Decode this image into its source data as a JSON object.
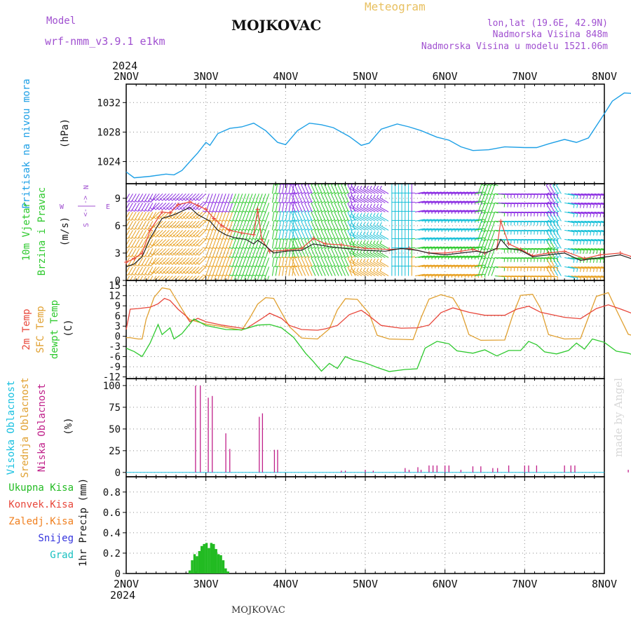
{
  "header": {
    "model_label": "Model",
    "model_name": "wrf-nmm_v3.9.1 e1km",
    "station": "MOJKOVAC",
    "meteogram": "Meteogram",
    "coords": "lon,lat (19.6E, 42.9N)",
    "altitude": "Nadmorska Visina 848m",
    "model_altitude": "Nadmorska Visina u modelu 1521.06m",
    "year_top": "2024",
    "year_bottom": "2024",
    "footer_station": "MOJKOVAC",
    "credit": "made by Angel"
  },
  "days": [
    "2NOV",
    "3NOV",
    "4NOV",
    "5NOV",
    "6NOV",
    "7NOV",
    "8NOV"
  ],
  "colors": {
    "pressure": "#1ea0e6",
    "temp2m": "#e8473b",
    "sfc": "#e0a030",
    "dew": "#2ec92e",
    "cloud_low": "#c0208a",
    "precip": "#22bb22",
    "wind_low": "#e8a020",
    "wind_mid": "#2ec92e",
    "wind_high": "#18c0d8",
    "wind_top": "#8a2be2",
    "wind_speed": "#222222",
    "gust": "#e8473b",
    "violet_text": "#a050d0"
  },
  "panels": {
    "pressure": {
      "label": "Pritisak na nivou mora",
      "unit": "(hPa)",
      "ticks": [
        1024,
        1028,
        1032
      ],
      "ylim": [
        1021,
        1034.5
      ]
    },
    "wind": {
      "label1": "10m Vjetar",
      "label2": "Brzina i Pravac",
      "unit": "(m/s)",
      "compass_n": "N",
      "compass_s": "S",
      "compass_w": "W",
      "compass_e": "E",
      "compass_arrows": "<-|->",
      "ticks": [
        0,
        3,
        6,
        9
      ],
      "ylim": [
        0,
        10.6
      ]
    },
    "temp": {
      "label1": "2m Temp",
      "label2": "SFC Temp",
      "label3": "dewpt Temp",
      "unit": "(C)",
      "ticks": [
        -12,
        -9,
        -6,
        -3,
        0,
        3,
        6,
        9,
        12,
        15
      ],
      "ylim": [
        -12.5,
        16.5
      ]
    },
    "cloud": {
      "label1": "Visoka Oblacnost",
      "label2": "Srednja Oblacnost",
      "label3": "Niska Oblacnost",
      "unit": "(%)",
      "ticks": [
        0,
        25,
        50,
        75,
        100
      ],
      "ylim": [
        -5,
        108
      ]
    },
    "precip": {
      "legend": [
        "Ukupna Kisa",
        "Konvek.Kisa",
        "Zaledj.Kisa",
        "Snijeg",
        "Grad"
      ],
      "legend_colors": [
        "#22bb22",
        "#e8473b",
        "#f08020",
        "#3333dd",
        "#18c0c0"
      ],
      "axis_label": "1hr Precip (mm)",
      "ticks": [
        "0",
        "0.2",
        "0.4",
        "0.6",
        "0.8"
      ],
      "ylim": [
        0,
        0.95
      ]
    }
  },
  "chart_data": {
    "type": "line",
    "x_unit": "days since 2NOV 00 UTC",
    "pressure": [
      [
        0,
        1022.6
      ],
      [
        0.1,
        1021.8
      ],
      [
        0.3,
        1022
      ],
      [
        0.5,
        1022.3
      ],
      [
        0.6,
        1022.2
      ],
      [
        0.7,
        1022.8
      ],
      [
        0.8,
        1024
      ],
      [
        0.9,
        1025.2
      ],
      [
        1.0,
        1026.6
      ],
      [
        1.05,
        1026.2
      ],
      [
        1.15,
        1027.8
      ],
      [
        1.3,
        1028.5
      ],
      [
        1.45,
        1028.7
      ],
      [
        1.6,
        1029.2
      ],
      [
        1.75,
        1028.2
      ],
      [
        1.9,
        1026.6
      ],
      [
        2.0,
        1026.3
      ],
      [
        2.15,
        1028.2
      ],
      [
        2.3,
        1029.2
      ],
      [
        2.45,
        1029
      ],
      [
        2.6,
        1028.6
      ],
      [
        2.8,
        1027.4
      ],
      [
        2.95,
        1026.2
      ],
      [
        3.05,
        1026.5
      ],
      [
        3.2,
        1028.4
      ],
      [
        3.4,
        1029.1
      ],
      [
        3.55,
        1028.7
      ],
      [
        3.7,
        1028.2
      ],
      [
        3.9,
        1027.3
      ],
      [
        4.05,
        1026.9
      ],
      [
        4.2,
        1026
      ],
      [
        4.35,
        1025.5
      ],
      [
        4.55,
        1025.6
      ],
      [
        4.75,
        1026
      ],
      [
        5.0,
        1025.9
      ],
      [
        5.15,
        1025.9
      ],
      [
        5.3,
        1026.4
      ],
      [
        5.5,
        1027
      ],
      [
        5.65,
        1026.6
      ],
      [
        5.8,
        1027.2
      ],
      [
        6.0,
        1030.5
      ],
      [
        6.1,
        1032.2
      ],
      [
        6.25,
        1033.3
      ],
      [
        6.4,
        1033.2
      ],
      [
        6.55,
        1032.3
      ],
      [
        6.75,
        1030.7
      ],
      [
        6.95,
        1031.6
      ],
      [
        7.1,
        1033.0
      ],
      [
        7.25,
        1032.8
      ],
      [
        7.45,
        1034.0
      ],
      [
        7.6,
        1034.2
      ]
    ],
    "temp2m": [
      [
        0,
        2
      ],
      [
        0.05,
        8
      ],
      [
        0.15,
        8.2
      ],
      [
        0.3,
        8.6
      ],
      [
        0.4,
        9.6
      ],
      [
        0.48,
        11.2
      ],
      [
        0.55,
        10.6
      ],
      [
        0.65,
        8
      ],
      [
        0.75,
        6
      ],
      [
        0.8,
        4.3
      ],
      [
        0.9,
        5.3
      ],
      [
        1.0,
        4.3
      ],
      [
        1.2,
        3.3
      ],
      [
        1.5,
        2.2
      ],
      [
        1.7,
        5.2
      ],
      [
        1.8,
        6.8
      ],
      [
        1.95,
        5.3
      ],
      [
        2.05,
        3.2
      ],
      [
        2.2,
        2
      ],
      [
        2.4,
        1.8
      ],
      [
        2.5,
        2.2
      ],
      [
        2.65,
        3.2
      ],
      [
        2.8,
        6.4
      ],
      [
        2.95,
        7.7
      ],
      [
        3.05,
        6
      ],
      [
        3.2,
        3.2
      ],
      [
        3.45,
        2.4
      ],
      [
        3.65,
        2.5
      ],
      [
        3.8,
        3.3
      ],
      [
        3.95,
        7
      ],
      [
        4.1,
        8.4
      ],
      [
        4.3,
        7.1
      ],
      [
        4.5,
        6.2
      ],
      [
        4.75,
        6.2
      ],
      [
        4.9,
        8
      ],
      [
        5.05,
        8.9
      ],
      [
        5.2,
        7.1
      ],
      [
        5.5,
        5.6
      ],
      [
        5.7,
        5.2
      ],
      [
        5.9,
        8.2
      ],
      [
        6.05,
        9.3
      ],
      [
        6.2,
        8.1
      ],
      [
        6.5,
        5.4
      ],
      [
        6.8,
        5.1
      ],
      [
        6.95,
        8.1
      ],
      [
        7.1,
        9.2
      ],
      [
        7.25,
        8.2
      ],
      [
        7.45,
        5.1
      ],
      [
        7.6,
        4.7
      ]
    ],
    "sfc": [
      [
        0,
        -0.4
      ],
      [
        0.05,
        -0.4
      ],
      [
        0.15,
        -0.8
      ],
      [
        0.2,
        -0.8
      ],
      [
        0.25,
        5
      ],
      [
        0.35,
        11.5
      ],
      [
        0.45,
        14.3
      ],
      [
        0.55,
        13.9
      ],
      [
        0.65,
        10
      ],
      [
        0.75,
        6.1
      ],
      [
        0.8,
        4.9
      ],
      [
        1.0,
        3.6
      ],
      [
        1.2,
        2.9
      ],
      [
        1.45,
        1.8
      ],
      [
        1.55,
        5.4
      ],
      [
        1.65,
        9.5
      ],
      [
        1.75,
        11.4
      ],
      [
        1.85,
        11.2
      ],
      [
        1.95,
        7
      ],
      [
        2.05,
        2.8
      ],
      [
        2.2,
        -0.5
      ],
      [
        2.4,
        -0.8
      ],
      [
        2.55,
        2.2
      ],
      [
        2.65,
        7.8
      ],
      [
        2.75,
        11.1
      ],
      [
        2.9,
        10.9
      ],
      [
        3.05,
        6.7
      ],
      [
        3.15,
        0.3
      ],
      [
        3.3,
        -0.8
      ],
      [
        3.6,
        -1
      ],
      [
        3.7,
        5.5
      ],
      [
        3.8,
        11
      ],
      [
        3.95,
        12.3
      ],
      [
        4.1,
        11.3
      ],
      [
        4.2,
        7.5
      ],
      [
        4.3,
        0.5
      ],
      [
        4.45,
        -1.2
      ],
      [
        4.75,
        -1.1
      ],
      [
        4.85,
        6.2
      ],
      [
        4.95,
        12.1
      ],
      [
        5.1,
        12.4
      ],
      [
        5.2,
        8.2
      ],
      [
        5.3,
        0.5
      ],
      [
        5.5,
        -0.8
      ],
      [
        5.7,
        -0.7
      ],
      [
        5.8,
        5.6
      ],
      [
        5.9,
        11.8
      ],
      [
        6.05,
        12.9
      ],
      [
        6.15,
        7.8
      ],
      [
        6.3,
        0.6
      ],
      [
        6.5,
        -0.8
      ],
      [
        6.75,
        -0.9
      ],
      [
        6.85,
        6
      ],
      [
        6.95,
        12.3
      ],
      [
        7.1,
        13.1
      ],
      [
        7.2,
        8.2
      ],
      [
        7.3,
        1
      ],
      [
        7.45,
        -0.4
      ],
      [
        7.6,
        -0.4
      ]
    ],
    "dew": [
      [
        0,
        -3.5
      ],
      [
        0.1,
        -4.5
      ],
      [
        0.2,
        -6
      ],
      [
        0.3,
        -2
      ],
      [
        0.4,
        3.5
      ],
      [
        0.45,
        0.5
      ],
      [
        0.55,
        2.5
      ],
      [
        0.6,
        -0.8
      ],
      [
        0.7,
        0.8
      ],
      [
        0.85,
        5.1
      ],
      [
        1.0,
        3.2
      ],
      [
        1.25,
        2
      ],
      [
        1.45,
        1.9
      ],
      [
        1.65,
        3.3
      ],
      [
        1.8,
        3.5
      ],
      [
        1.95,
        2.5
      ],
      [
        2.1,
        -0.3
      ],
      [
        2.25,
        -5
      ],
      [
        2.35,
        -7.5
      ],
      [
        2.45,
        -10.3
      ],
      [
        2.55,
        -8
      ],
      [
        2.65,
        -9.5
      ],
      [
        2.75,
        -6
      ],
      [
        2.85,
        -7
      ],
      [
        2.95,
        -7.5
      ],
      [
        3.05,
        -8.3
      ],
      [
        3.15,
        -9.2
      ],
      [
        3.3,
        -10.4
      ],
      [
        3.5,
        -9.8
      ],
      [
        3.65,
        -9.6
      ],
      [
        3.75,
        -3.5
      ],
      [
        3.9,
        -1.5
      ],
      [
        4.05,
        -2.2
      ],
      [
        4.15,
        -4.3
      ],
      [
        4.35,
        -5
      ],
      [
        4.5,
        -4
      ],
      [
        4.65,
        -5.8
      ],
      [
        4.8,
        -4.2
      ],
      [
        4.95,
        -4.2
      ],
      [
        5.05,
        -1.5
      ],
      [
        5.15,
        -2.5
      ],
      [
        5.25,
        -4.6
      ],
      [
        5.4,
        -5.2
      ],
      [
        5.55,
        -4.2
      ],
      [
        5.65,
        -2
      ],
      [
        5.75,
        -3.8
      ],
      [
        5.85,
        -0.8
      ],
      [
        6.0,
        -1.8
      ],
      [
        6.15,
        -4.4
      ],
      [
        6.3,
        -5
      ],
      [
        6.45,
        -6.3
      ],
      [
        6.55,
        -8.1
      ],
      [
        6.7,
        -5.3
      ],
      [
        6.85,
        -3.2
      ],
      [
        6.95,
        -2.5
      ],
      [
        7.05,
        0.2
      ],
      [
        7.15,
        -0.6
      ],
      [
        7.25,
        -2.8
      ],
      [
        7.4,
        -3.7
      ],
      [
        7.6,
        -4.8
      ]
    ],
    "wind_speed": [
      [
        0,
        1.5
      ],
      [
        0.1,
        1.8
      ],
      [
        0.2,
        2.6
      ],
      [
        0.3,
        4.6
      ],
      [
        0.45,
        6.8
      ],
      [
        0.6,
        7.2
      ],
      [
        0.7,
        7.6
      ],
      [
        0.8,
        8.0
      ],
      [
        0.9,
        7.2
      ],
      [
        1.05,
        6.5
      ],
      [
        1.15,
        5.5
      ],
      [
        1.25,
        5.0
      ],
      [
        1.35,
        4.7
      ],
      [
        1.5,
        4.5
      ],
      [
        1.6,
        4.0
      ],
      [
        1.65,
        4.4
      ],
      [
        1.75,
        3.8
      ],
      [
        1.85,
        3.0
      ],
      [
        2.0,
        3.2
      ],
      [
        2.2,
        3.3
      ],
      [
        2.35,
        4.0
      ],
      [
        2.55,
        3.7
      ],
      [
        2.75,
        3.5
      ],
      [
        3.0,
        3.3
      ],
      [
        3.25,
        3.2
      ],
      [
        3.45,
        3.5
      ],
      [
        3.65,
        3.3
      ],
      [
        3.8,
        3.0
      ],
      [
        4.0,
        2.8
      ],
      [
        4.2,
        3.0
      ],
      [
        4.4,
        3.2
      ],
      [
        4.5,
        3.0
      ],
      [
        4.65,
        3.5
      ],
      [
        4.7,
        4.5
      ],
      [
        4.8,
        3.5
      ],
      [
        4.95,
        3.3
      ],
      [
        5.1,
        2.6
      ],
      [
        5.3,
        2.8
      ],
      [
        5.5,
        3.0
      ],
      [
        5.7,
        2.2
      ],
      [
        5.95,
        2.5
      ],
      [
        6.2,
        2.8
      ],
      [
        6.4,
        2.2
      ],
      [
        6.55,
        2.0
      ],
      [
        6.7,
        2.5
      ],
      [
        6.9,
        2.4
      ],
      [
        7.1,
        2.6
      ],
      [
        7.3,
        2.7
      ],
      [
        7.45,
        2.5
      ],
      [
        7.6,
        2.5
      ]
    ],
    "gust": [
      [
        0,
        2.0
      ],
      [
        0.1,
        2.4
      ],
      [
        0.2,
        3.0
      ],
      [
        0.3,
        5.5
      ],
      [
        0.45,
        7.5
      ],
      [
        0.55,
        7.4
      ],
      [
        0.65,
        8.3
      ],
      [
        0.8,
        8.6
      ],
      [
        0.9,
        8.2
      ],
      [
        1.0,
        7.8
      ],
      [
        1.1,
        6.8
      ],
      [
        1.2,
        6.0
      ],
      [
        1.3,
        5.5
      ],
      [
        1.45,
        5.2
      ],
      [
        1.6,
        5.0
      ],
      [
        1.65,
        7.8
      ],
      [
        1.7,
        4.5
      ],
      [
        1.8,
        3.2
      ],
      [
        2.0,
        3.3
      ],
      [
        2.2,
        3.5
      ],
      [
        2.35,
        4.6
      ],
      [
        2.5,
        4.0
      ],
      [
        2.7,
        3.9
      ],
      [
        3.0,
        3.5
      ],
      [
        3.3,
        3.4
      ],
      [
        3.55,
        3.5
      ],
      [
        3.8,
        3.0
      ],
      [
        4.0,
        3.0
      ],
      [
        4.2,
        3.2
      ],
      [
        4.35,
        3.4
      ],
      [
        4.5,
        3.0
      ],
      [
        4.65,
        3.5
      ],
      [
        4.7,
        6.5
      ],
      [
        4.8,
        4.0
      ],
      [
        4.95,
        3.4
      ],
      [
        5.1,
        2.7
      ],
      [
        5.3,
        3.0
      ],
      [
        5.5,
        3.2
      ],
      [
        5.75,
        2.4
      ],
      [
        5.95,
        2.8
      ],
      [
        6.2,
        3.0
      ],
      [
        6.35,
        2.6
      ],
      [
        6.5,
        2.2
      ],
      [
        6.7,
        2.8
      ],
      [
        6.9,
        2.8
      ],
      [
        7.1,
        3.0
      ],
      [
        7.3,
        2.9
      ],
      [
        7.5,
        2.8
      ],
      [
        7.6,
        2.8
      ]
    ],
    "cloud_low": [
      [
        0.87,
        100
      ],
      [
        0.93,
        100
      ],
      [
        1.03,
        86
      ],
      [
        1.08,
        88
      ],
      [
        1.25,
        45
      ],
      [
        1.3,
        27
      ],
      [
        1.67,
        64
      ],
      [
        1.71,
        68
      ],
      [
        1.86,
        26
      ],
      [
        1.9,
        26
      ],
      [
        2.7,
        2
      ],
      [
        2.75,
        2
      ],
      [
        3.0,
        3
      ],
      [
        3.1,
        2
      ],
      [
        3.5,
        5
      ],
      [
        3.55,
        3
      ],
      [
        3.66,
        6
      ],
      [
        3.7,
        3
      ],
      [
        3.8,
        8
      ],
      [
        3.85,
        8
      ],
      [
        3.9,
        8
      ],
      [
        4.0,
        8
      ],
      [
        4.05,
        8
      ],
      [
        4.2,
        3
      ],
      [
        4.35,
        7
      ],
      [
        4.45,
        7
      ],
      [
        4.6,
        5
      ],
      [
        4.66,
        5
      ],
      [
        4.8,
        8
      ],
      [
        5.0,
        8
      ],
      [
        5.05,
        8
      ],
      [
        5.15,
        8
      ],
      [
        5.5,
        8
      ],
      [
        5.58,
        8
      ],
      [
        5.63,
        8
      ],
      [
        6.3,
        3
      ],
      [
        6.5,
        3
      ],
      [
        6.6,
        7
      ],
      [
        6.75,
        7
      ],
      [
        7.1,
        8
      ],
      [
        7.15,
        7
      ],
      [
        7.35,
        4
      ],
      [
        7.55,
        8
      ]
    ],
    "precip": [
      [
        0.8,
        0.03
      ],
      [
        0.83,
        0.13
      ],
      [
        0.86,
        0.19
      ],
      [
        0.89,
        0.17
      ],
      [
        0.92,
        0.22
      ],
      [
        0.95,
        0.27
      ],
      [
        0.98,
        0.29
      ],
      [
        1.01,
        0.3
      ],
      [
        1.04,
        0.25
      ],
      [
        1.07,
        0.3
      ],
      [
        1.1,
        0.29
      ],
      [
        1.13,
        0.24
      ],
      [
        1.16,
        0.19
      ],
      [
        1.19,
        0.18
      ],
      [
        1.22,
        0.13
      ],
      [
        1.25,
        0.05
      ],
      [
        1.28,
        0.02
      ]
    ],
    "wind_bands": [
      0.5,
      1.5,
      2.5,
      3.5,
      4.5,
      5.5,
      6.5,
      7.5,
      8.5,
      9.5
    ]
  }
}
